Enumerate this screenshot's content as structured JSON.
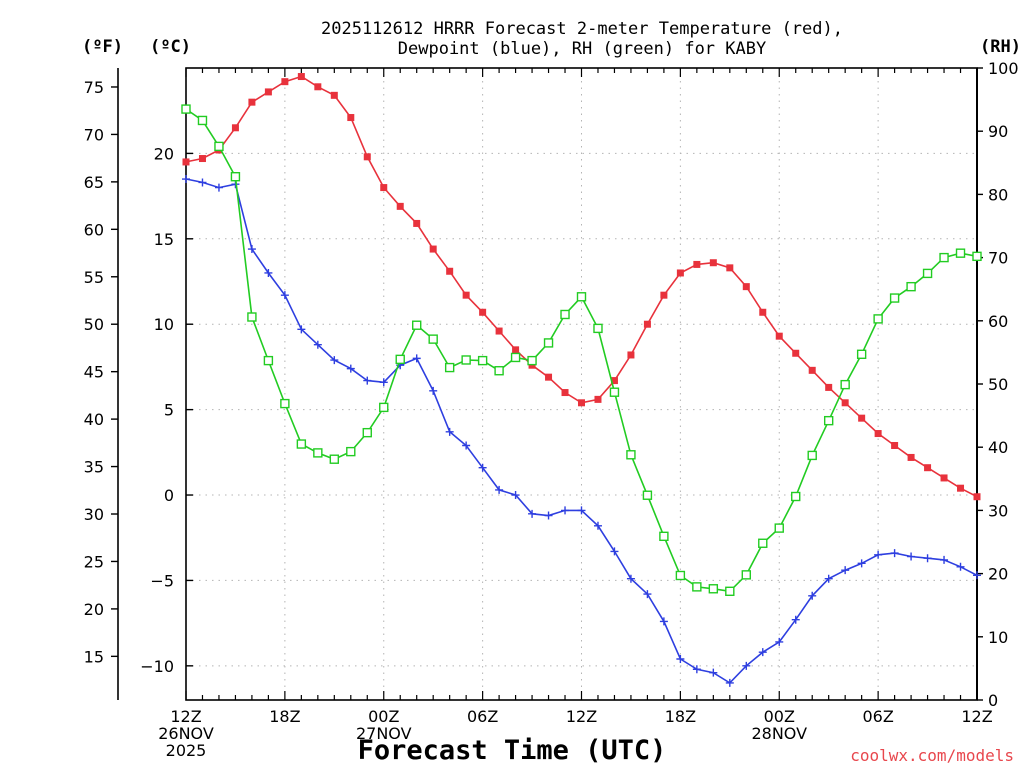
{
  "chart_data": {
    "type": "line",
    "title_line1": "2025112612 HRRR Forecast 2-meter Temperature (red),",
    "title_line2": "Dewpoint (blue), RH (green) for KABY",
    "xlabel": "Forecast Time (UTC)",
    "credit": "coolwx.com/models",
    "units": {
      "fahrenheit": "(ºF)",
      "celsius": "(ºC)",
      "rh": "(RH)"
    },
    "hours": [
      0,
      1,
      2,
      3,
      4,
      5,
      6,
      7,
      8,
      9,
      10,
      11,
      12,
      13,
      14,
      15,
      16,
      17,
      18,
      19,
      20,
      21,
      22,
      23,
      24,
      25,
      26,
      27,
      28,
      29,
      30,
      31,
      32,
      33,
      34,
      35,
      36,
      37,
      38,
      39,
      40,
      41,
      42,
      43,
      44,
      45,
      46,
      47,
      48
    ],
    "x_range": [
      0,
      48
    ],
    "celsius_range": [
      -12,
      25
    ],
    "rh_range": [
      0,
      100
    ],
    "x_ticks": [
      {
        "h": 0,
        "lines": [
          "12Z",
          "26NOV",
          "2025"
        ]
      },
      {
        "h": 6,
        "lines": [
          "18Z"
        ]
      },
      {
        "h": 12,
        "lines": [
          "00Z",
          "27NOV"
        ]
      },
      {
        "h": 18,
        "lines": [
          "06Z"
        ]
      },
      {
        "h": 24,
        "lines": [
          "12Z"
        ]
      },
      {
        "h": 30,
        "lines": [
          "18Z"
        ]
      },
      {
        "h": 36,
        "lines": [
          "00Z",
          "28NOV"
        ]
      },
      {
        "h": 42,
        "lines": [
          "06Z"
        ]
      },
      {
        "h": 48,
        "lines": [
          "12Z"
        ]
      }
    ],
    "celsius_ticks": [
      20,
      15,
      10,
      5,
      0,
      -5,
      -10
    ],
    "celsius_tick_labels": [
      "20",
      "15",
      "10",
      "5",
      "0",
      "−5",
      "−10"
    ],
    "fahrenheit_ticks": [
      75,
      70,
      65,
      60,
      55,
      50,
      45,
      40,
      35,
      30,
      25,
      20,
      15
    ],
    "rh_ticks": [
      100,
      90,
      80,
      70,
      60,
      50,
      40,
      30,
      20,
      10,
      0
    ],
    "series": [
      {
        "name": "Temperature",
        "unit": "C",
        "color": "#e8323c",
        "marker": "filled-square",
        "values": [
          19.5,
          19.7,
          20.2,
          21.5,
          23.0,
          23.6,
          24.2,
          24.5,
          23.9,
          23.4,
          22.1,
          19.8,
          18.0,
          16.9,
          15.9,
          14.4,
          13.1,
          11.7,
          10.7,
          9.6,
          8.5,
          7.6,
          6.9,
          6.0,
          5.4,
          5.6,
          6.7,
          8.2,
          10.0,
          11.7,
          13.0,
          13.5,
          13.6,
          13.3,
          12.2,
          10.7,
          9.3,
          8.3,
          7.3,
          6.3,
          5.4,
          4.5,
          3.6,
          2.9,
          2.2,
          1.6,
          1.0,
          0.4,
          -0.1
        ]
      },
      {
        "name": "Dewpoint",
        "unit": "C",
        "color": "#2e3fe0",
        "marker": "plus",
        "values": [
          18.5,
          18.3,
          18.0,
          18.2,
          14.4,
          13.0,
          11.7,
          9.7,
          8.8,
          7.9,
          7.4,
          6.7,
          6.6,
          7.6,
          8.0,
          6.1,
          3.7,
          2.9,
          1.6,
          0.3,
          0.0,
          -1.1,
          -1.2,
          -0.9,
          -0.9,
          -1.8,
          -3.3,
          -4.9,
          -5.8,
          -7.4,
          -9.6,
          -10.2,
          -10.4,
          -11.0,
          -10.0,
          -9.2,
          -8.6,
          -7.3,
          -5.9,
          -4.9,
          -4.4,
          -4.0,
          -3.5,
          -3.4,
          -3.6,
          -3.7,
          -3.8,
          -4.2,
          -4.7
        ]
      },
      {
        "name": "RH",
        "unit": "%",
        "color": "#22cc22",
        "marker": "open-square",
        "values": [
          93.5,
          91.7,
          87.6,
          82.8,
          60.6,
          53.7,
          46.9,
          40.5,
          39.1,
          38.1,
          39.3,
          42.3,
          46.3,
          53.9,
          59.3,
          57.1,
          52.6,
          53.8,
          53.7,
          52.1,
          54.2,
          53.7,
          56.5,
          61.0,
          63.8,
          58.8,
          48.7,
          38.8,
          32.4,
          25.9,
          19.7,
          17.9,
          17.6,
          17.2,
          19.8,
          24.8,
          27.2,
          32.2,
          38.7,
          44.2,
          49.9,
          54.7,
          60.3,
          63.6,
          65.4,
          67.5,
          70.0,
          70.7,
          70.2
        ]
      }
    ]
  }
}
